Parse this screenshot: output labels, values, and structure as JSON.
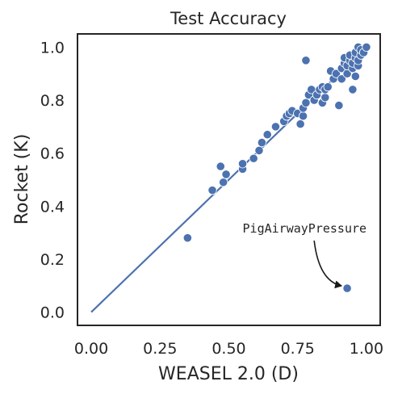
{
  "chart_data": {
    "type": "scatter",
    "title": "Test Accuracy",
    "xlabel": "WEASEL 2.0 (D)",
    "ylabel": "Rocket (K)",
    "xlim": [
      -0.05,
      1.05
    ],
    "ylim": [
      -0.05,
      1.05
    ],
    "xticks": [
      "0.00",
      "0.25",
      "0.50",
      "0.75",
      "1.00"
    ],
    "yticks": [
      "0.0",
      "0.2",
      "0.4",
      "0.6",
      "0.8",
      "1.0"
    ],
    "grid": false,
    "reference_line": {
      "from": [
        0,
        0
      ],
      "to": [
        1,
        1
      ],
      "color": "#4c72b0"
    },
    "marker_color": "#4c72b0",
    "points": [
      [
        0.35,
        0.28
      ],
      [
        0.44,
        0.46
      ],
      [
        0.47,
        0.55
      ],
      [
        0.48,
        0.49
      ],
      [
        0.49,
        0.52
      ],
      [
        0.55,
        0.54
      ],
      [
        0.55,
        0.56
      ],
      [
        0.59,
        0.58
      ],
      [
        0.61,
        0.61
      ],
      [
        0.62,
        0.64
      ],
      [
        0.64,
        0.67
      ],
      [
        0.67,
        0.7
      ],
      [
        0.7,
        0.72
      ],
      [
        0.71,
        0.74
      ],
      [
        0.72,
        0.75
      ],
      [
        0.73,
        0.76
      ],
      [
        0.75,
        0.75
      ],
      [
        0.76,
        0.71
      ],
      [
        0.77,
        0.74
      ],
      [
        0.77,
        0.77
      ],
      [
        0.78,
        0.79
      ],
      [
        0.78,
        0.95
      ],
      [
        0.79,
        0.82
      ],
      [
        0.8,
        0.84
      ],
      [
        0.81,
        0.8
      ],
      [
        0.82,
        0.82
      ],
      [
        0.83,
        0.84
      ],
      [
        0.84,
        0.79
      ],
      [
        0.84,
        0.85
      ],
      [
        0.85,
        0.81
      ],
      [
        0.85,
        0.84
      ],
      [
        0.86,
        0.85
      ],
      [
        0.87,
        0.91
      ],
      [
        0.88,
        0.88
      ],
      [
        0.89,
        0.9
      ],
      [
        0.9,
        0.78
      ],
      [
        0.91,
        0.88
      ],
      [
        0.91,
        0.92
      ],
      [
        0.92,
        0.94
      ],
      [
        0.92,
        0.96
      ],
      [
        0.93,
        0.9
      ],
      [
        0.93,
        0.93
      ],
      [
        0.94,
        0.95
      ],
      [
        0.94,
        0.97
      ],
      [
        0.95,
        0.84
      ],
      [
        0.95,
        0.92
      ],
      [
        0.95,
        0.94
      ],
      [
        0.96,
        0.89
      ],
      [
        0.96,
        0.96
      ],
      [
        0.96,
        0.98
      ],
      [
        0.97,
        0.93
      ],
      [
        0.97,
        0.95
      ],
      [
        0.97,
        1.0
      ],
      [
        0.98,
        0.97
      ],
      [
        0.98,
        0.99
      ],
      [
        0.99,
        0.98
      ],
      [
        1.0,
        1.0
      ],
      [
        0.93,
        0.09
      ]
    ],
    "annotations": [
      {
        "text": "PigAirwayPressure",
        "point": [
          0.93,
          0.09
        ],
        "text_at": [
          0.55,
          0.3
        ]
      }
    ]
  }
}
